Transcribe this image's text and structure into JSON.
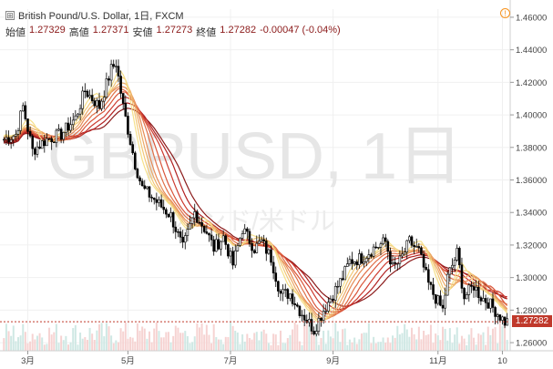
{
  "header": {
    "expand_icon": "grid-expand-icon",
    "title": "British Pound/U.S. Dollar, 1日, FXCM",
    "open_label": "始値",
    "open_value": "1.27329",
    "high_label": "高値",
    "high_value": "1.27371",
    "low_label": "安値",
    "low_value": "1.27273",
    "close_label": "終値",
    "close_value": "1.27282",
    "change": "-0.00047 (-0.04%)",
    "alert_icon": "alert-icon"
  },
  "watermark": {
    "symbol": "GBPUSD, 1日",
    "name": "ポンド/米ドル"
  },
  "current_price": "1.27282",
  "colors": {
    "up": "#26a69a",
    "down": "#ef5350",
    "candle": "#000000",
    "price_line": "#c0392b",
    "ribbon": [
      "#8b1a1a",
      "#b22222",
      "#cd3b2f",
      "#d9553a",
      "#e07048",
      "#e68a55",
      "#ecaa66",
      "#f2c878",
      "#f6e08a"
    ]
  },
  "chart_data": {
    "type": "candlestick",
    "y_range": [
      1.255,
      1.465
    ],
    "y_ticks": [
      "1.26000",
      "1.28000",
      "1.30000",
      "1.32000",
      "1.34000",
      "1.36000",
      "1.38000",
      "1.40000",
      "1.42000",
      "1.44000",
      "1.46000"
    ],
    "x_ticks": [
      {
        "label": "3月",
        "index": 10
      },
      {
        "label": "5月",
        "index": 52
      },
      {
        "label": "7月",
        "index": 95
      },
      {
        "label": "9月",
        "index": 138
      },
      {
        "label": "11月",
        "index": 182
      },
      {
        "label": "10",
        "index": 209
      }
    ],
    "total_slots": 212,
    "close_path": [
      [
        0,
        1.385
      ],
      [
        5,
        1.388
      ],
      [
        8,
        1.405
      ],
      [
        12,
        1.378
      ],
      [
        18,
        1.385
      ],
      [
        24,
        1.388
      ],
      [
        30,
        1.398
      ],
      [
        34,
        1.415
      ],
      [
        40,
        1.405
      ],
      [
        45,
        1.428
      ],
      [
        47,
        1.432
      ],
      [
        50,
        1.405
      ],
      [
        55,
        1.37
      ],
      [
        58,
        1.355
      ],
      [
        63,
        1.348
      ],
      [
        70,
        1.338
      ],
      [
        75,
        1.318
      ],
      [
        80,
        1.34
      ],
      [
        85,
        1.328
      ],
      [
        88,
        1.318
      ],
      [
        92,
        1.325
      ],
      [
        96,
        1.308
      ],
      [
        100,
        1.33
      ],
      [
        105,
        1.318
      ],
      [
        108,
        1.322
      ],
      [
        112,
        1.312
      ],
      [
        116,
        1.29
      ],
      [
        120,
        1.29
      ],
      [
        124,
        1.28
      ],
      [
        128,
        1.272
      ],
      [
        130,
        1.268
      ],
      [
        134,
        1.28
      ],
      [
        138,
        1.29
      ],
      [
        142,
        1.3
      ],
      [
        145,
        1.31
      ],
      [
        150,
        1.312
      ],
      [
        155,
        1.318
      ],
      [
        160,
        1.322
      ],
      [
        163,
        1.306
      ],
      [
        166,
        1.31
      ],
      [
        170,
        1.322
      ],
      [
        174,
        1.316
      ],
      [
        178,
        1.296
      ],
      [
        180,
        1.29
      ],
      [
        184,
        1.28
      ],
      [
        186,
        1.3
      ],
      [
        190,
        1.315
      ],
      [
        193,
        1.288
      ],
      [
        197,
        1.295
      ],
      [
        200,
        1.288
      ],
      [
        203,
        1.285
      ],
      [
        207,
        1.278
      ],
      [
        210,
        1.2728
      ]
    ]
  }
}
